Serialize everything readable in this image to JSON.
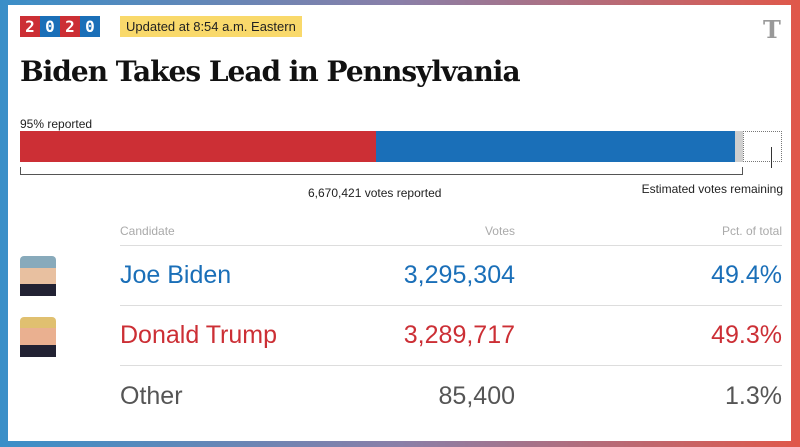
{
  "header": {
    "year_digits": [
      "2",
      "0",
      "2",
      "0"
    ],
    "updated": "Updated at 8:54 a.m. Eastern",
    "logo": "T",
    "title": "Biden Takes Lead in Pennsylvania"
  },
  "progress": {
    "reported_label": "95% reported",
    "reported_pct": 95,
    "votes_reported": "6,670,421 votes reported",
    "remaining_label": "Estimated votes remaining",
    "shares": {
      "trump": 49.3,
      "biden": 49.4,
      "other": 1.3
    }
  },
  "colors": {
    "dem": "#1a6fb8",
    "rep": "#cc2f35",
    "other": "#cfcfcf"
  },
  "table": {
    "headers": {
      "candidate": "Candidate",
      "votes": "Votes",
      "pct": "Pct. of total"
    },
    "rows": [
      {
        "name": "Joe Biden",
        "votes": "3,295,304",
        "pct": "49.4%",
        "color": "#1a6fb8"
      },
      {
        "name": "Donald Trump",
        "votes": "3,289,717",
        "pct": "49.3%",
        "color": "#cc2f35"
      },
      {
        "name": "Other",
        "votes": "85,400",
        "pct": "1.3%",
        "color": "#555555"
      }
    ]
  }
}
